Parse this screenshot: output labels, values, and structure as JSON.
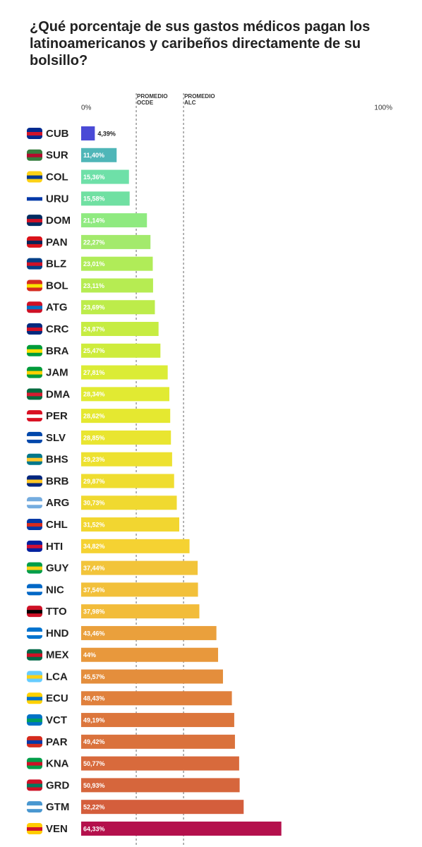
{
  "chart_data": {
    "type": "bar",
    "orientation": "horizontal",
    "title": "¿Qué porcentaje de sus gastos médicos pagan los latinoamericanos y caribeños directamente de su bolsillo?",
    "categories": [
      "CUB",
      "SUR",
      "COL",
      "URU",
      "DOM",
      "PAN",
      "BLZ",
      "BOL",
      "ATG",
      "CRC",
      "BRA",
      "JAM",
      "DMA",
      "PER",
      "SLV",
      "BHS",
      "BRB",
      "ARG",
      "CHL",
      "HTI",
      "GUY",
      "NIC",
      "TTO",
      "HND",
      "MEX",
      "LCA",
      "ECU",
      "VCT",
      "PAR",
      "KNA",
      "GRD",
      "GTM",
      "VEN"
    ],
    "values": [
      4.39,
      11.4,
      15.36,
      15.58,
      21.14,
      22.27,
      23.01,
      23.11,
      23.69,
      24.87,
      25.47,
      27.81,
      28.34,
      28.62,
      28.85,
      29.23,
      29.87,
      30.73,
      31.52,
      34.82,
      37.44,
      37.54,
      37.98,
      43.46,
      44,
      45.57,
      48.43,
      49.19,
      49.42,
      50.77,
      50.93,
      52.22,
      64.33
    ],
    "value_labels": [
      "4,39%",
      "11,40%",
      "15,36%",
      "15,58%",
      "21,14%",
      "22,27%",
      "23,01%",
      "23,11%",
      "23,69%",
      "24,87%",
      "25,47%",
      "27,81%",
      "28,34%",
      "28,62%",
      "28,85%",
      "29,23%",
      "29,87%",
      "30,73%",
      "31,52%",
      "34,82%",
      "37,44%",
      "37,54%",
      "37,98%",
      "43,46%",
      "44%",
      "45,57%",
      "48,43%",
      "49,19%",
      "49,42%",
      "50,77%",
      "50,93%",
      "52,22%",
      "64,33%"
    ],
    "colors": [
      "#4a4ad6",
      "#4fb6b8",
      "#6ee0a8",
      "#70e0a2",
      "#8fea80",
      "#a3ea6c",
      "#b0ec58",
      "#b6ec52",
      "#bdec4a",
      "#c6ec42",
      "#ceec3c",
      "#dbec36",
      "#e1ea32",
      "#e5e830",
      "#e9e530",
      "#ede130",
      "#efdd30",
      "#f0d930",
      "#f2d630",
      "#f5d232",
      "#f2c43a",
      "#f2c03a",
      "#f2bc3a",
      "#eaa03c",
      "#e8983c",
      "#e48e3c",
      "#e0803c",
      "#dc763c",
      "#da723c",
      "#d86a3c",
      "#d6663c",
      "#d45e3c",
      "#b4104c"
    ],
    "xlim": [
      0,
      100
    ],
    "xticks": [
      {
        "value": 0,
        "label": "0%"
      },
      {
        "value": 100,
        "label": "100%"
      }
    ],
    "reference_lines": [
      {
        "value": 17.7,
        "label": "PROMEDIO OCDE"
      },
      {
        "value": 32.9,
        "label": "PROMEDIO ALC"
      }
    ]
  }
}
